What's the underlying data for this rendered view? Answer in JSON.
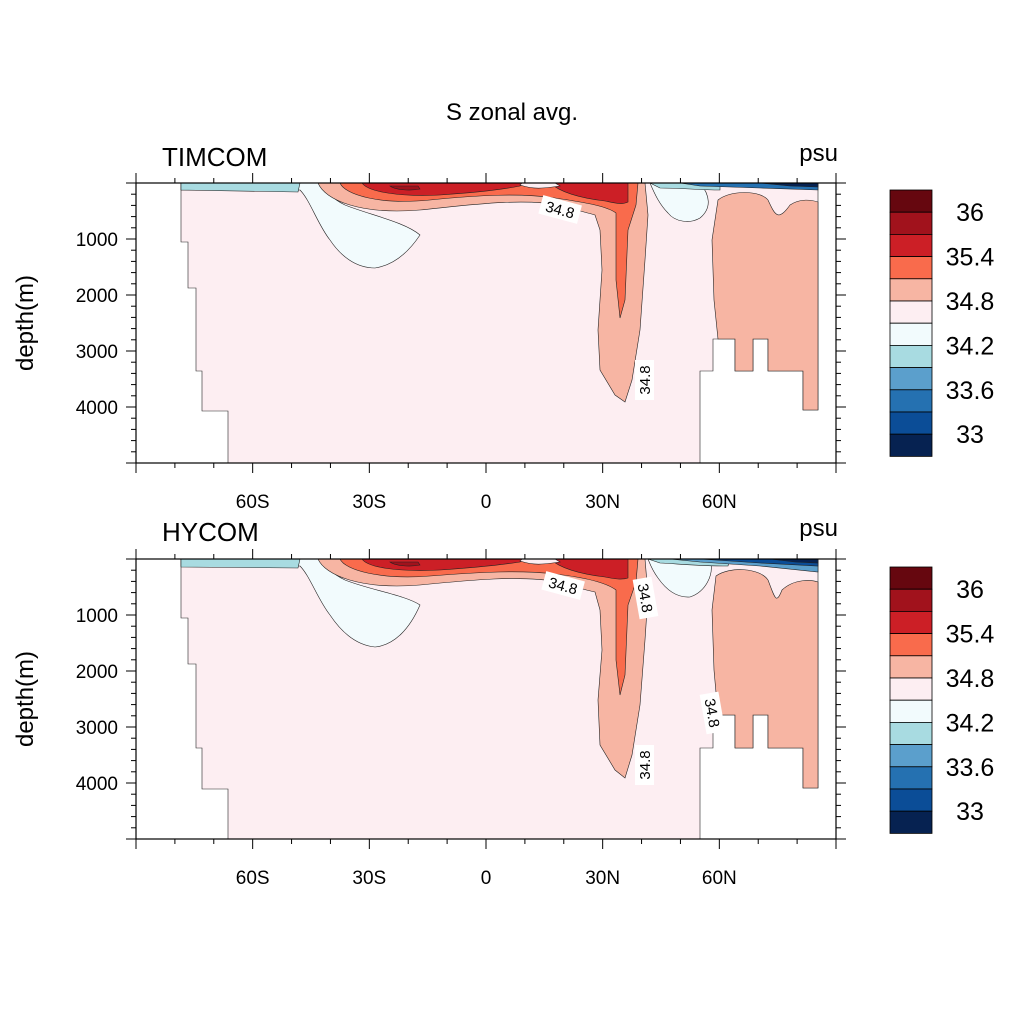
{
  "title": "S zonal avg.",
  "colors": {
    "c0": "#062251",
    "c1": "#0b4d97",
    "c2": "#2571b1",
    "c3": "#5b9fcc",
    "c4": "#a8dbe1",
    "c5": "#f2fbfd",
    "c6": "#fdeef2",
    "c7": "#f7b5a3",
    "c8": "#f96b4c",
    "c9": "#cc1f26",
    "c10": "#a1121c",
    "c11": "#66070f"
  },
  "colorbar": {
    "labels": [
      "36",
      "35.4",
      "34.8",
      "34.2",
      "33.6",
      "33"
    ]
  },
  "chart_data": [
    {
      "type": "contour",
      "panel_title": "TIMCOM",
      "unit": "psu",
      "ylabel": "depth(m)",
      "xticklabels": [
        "60S",
        "30S",
        "0",
        "30N",
        "60N"
      ],
      "yticklabels": [
        "1000",
        "2000",
        "3000",
        "4000"
      ],
      "xlim": [
        -90,
        90
      ],
      "ylim": [
        5000,
        0
      ],
      "contour_labels": [
        "34.8",
        "34.8"
      ],
      "levels": [
        33,
        33.3,
        33.6,
        33.9,
        34.2,
        34.5,
        34.8,
        35.1,
        35.4,
        35.7,
        36
      ]
    },
    {
      "type": "contour",
      "panel_title": "HYCOM",
      "unit": "psu",
      "ylabel": "depth(m)",
      "xticklabels": [
        "60S",
        "30S",
        "0",
        "30N",
        "60N"
      ],
      "yticklabels": [
        "1000",
        "2000",
        "3000",
        "4000"
      ],
      "xlim": [
        -90,
        90
      ],
      "ylim": [
        5000,
        0
      ],
      "contour_labels": [
        "34.8",
        "34.8",
        "34.8",
        "34.8"
      ],
      "levels": [
        33,
        33.3,
        33.6,
        33.9,
        34.2,
        34.5,
        34.8,
        35.1,
        35.4,
        35.7,
        36
      ]
    }
  ]
}
